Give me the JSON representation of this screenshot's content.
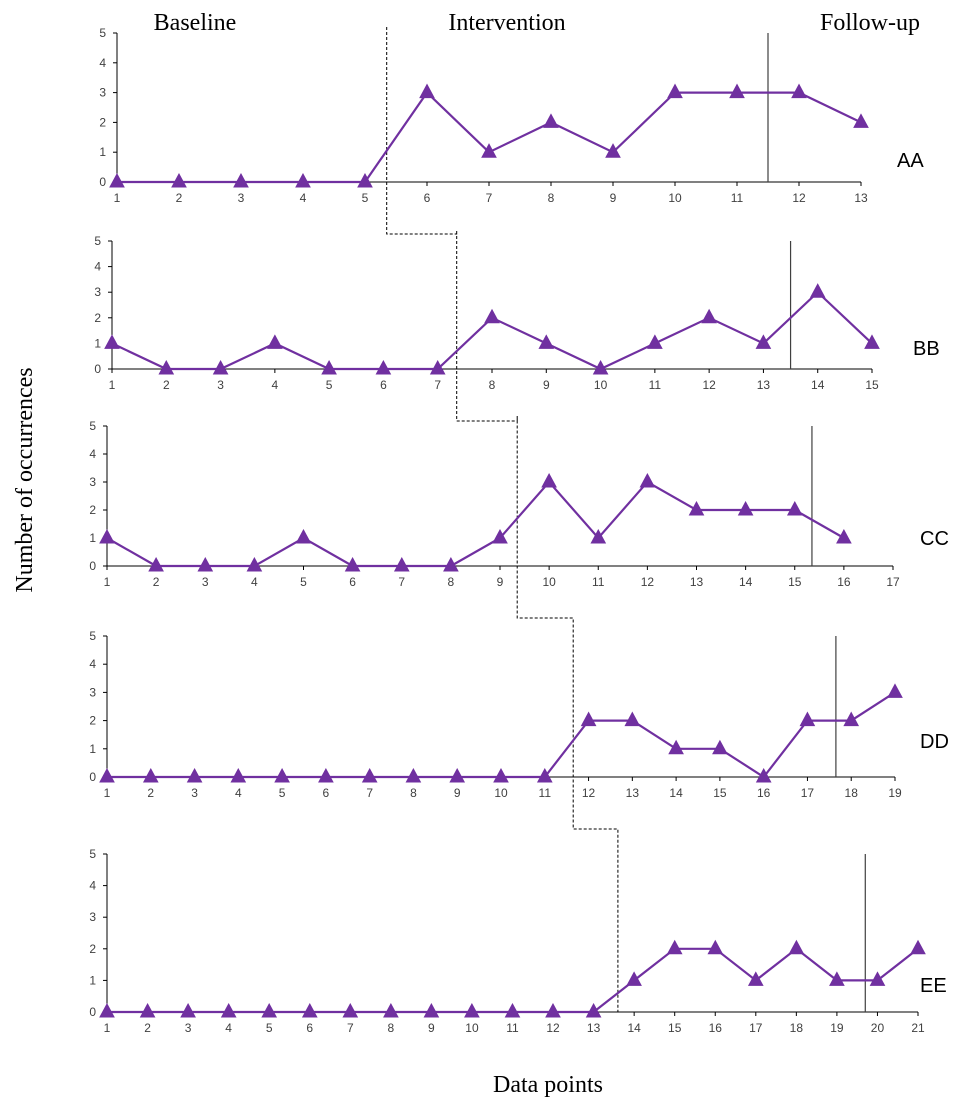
{
  "chart_data": {
    "type": "line",
    "phase_labels": [
      "Baseline",
      "Intervention",
      "Follow-up"
    ],
    "xlabel": "Data points",
    "ylabel": "Number of occurrences",
    "ylim": [
      0,
      5
    ],
    "yticks": [
      0,
      1,
      2,
      3,
      4,
      5
    ],
    "marker": "triangle",
    "color": "#7030a0",
    "panels": [
      {
        "label": "AA",
        "x": [
          1,
          2,
          3,
          4,
          5,
          6,
          7,
          8,
          9,
          10,
          11,
          12,
          13
        ],
        "values": [
          0,
          0,
          0,
          0,
          0,
          3,
          1,
          2,
          1,
          3,
          3,
          3,
          2
        ],
        "intervention_after": 5.35,
        "followup_after": 11.5
      },
      {
        "label": "BB",
        "x": [
          1,
          2,
          3,
          4,
          5,
          6,
          7,
          8,
          9,
          10,
          11,
          12,
          13,
          14,
          15
        ],
        "values": [
          1,
          0,
          0,
          1,
          0,
          0,
          0,
          2,
          1,
          0,
          1,
          2,
          1,
          3,
          1
        ],
        "intervention_after": 7.35,
        "followup_after": 13.5
      },
      {
        "label": "CC",
        "x": [
          1,
          2,
          3,
          4,
          5,
          6,
          7,
          8,
          9,
          10,
          11,
          12,
          13,
          14,
          15,
          16,
          17
        ],
        "values": [
          1,
          0,
          0,
          0,
          1,
          0,
          0,
          0,
          1,
          3,
          1,
          3,
          2,
          2,
          2,
          1,
          null
        ],
        "intervention_after": 9.35,
        "followup_after": 15.35
      },
      {
        "label": "DD",
        "x": [
          1,
          2,
          3,
          4,
          5,
          6,
          7,
          8,
          9,
          10,
          11,
          12,
          13,
          14,
          15,
          16,
          17,
          18,
          19
        ],
        "values": [
          0,
          0,
          0,
          0,
          0,
          0,
          0,
          0,
          0,
          0,
          0,
          2,
          2,
          1,
          1,
          0,
          2,
          2,
          3
        ],
        "intervention_after": 11.65,
        "followup_after": 17.65
      },
      {
        "label": "EE",
        "x": [
          1,
          2,
          3,
          4,
          5,
          6,
          7,
          8,
          9,
          10,
          11,
          12,
          13,
          14,
          15,
          16,
          17,
          18,
          19,
          20,
          21
        ],
        "values": [
          0,
          0,
          0,
          0,
          0,
          0,
          0,
          0,
          0,
          0,
          0,
          0,
          0,
          1,
          2,
          2,
          1,
          2,
          1,
          1,
          2
        ],
        "intervention_after": 13.6,
        "followup_after": 19.7
      }
    ]
  }
}
